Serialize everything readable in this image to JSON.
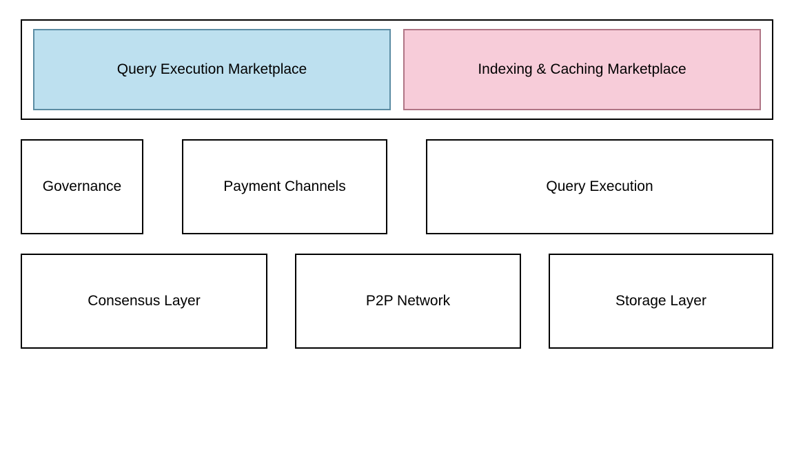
{
  "diagram": {
    "type": "architecture-block-diagram",
    "background_color": "#ffffff",
    "border_color": "#000000",
    "border_width": 2,
    "font_family": "Arial, Helvetica, sans-serif",
    "font_size_pt": 16,
    "text_color": "#000000",
    "top_container": {
      "has_outer_border": true,
      "boxes": [
        {
          "id": "query-marketplace",
          "label": "Query Execution Marketplace",
          "fill_color": "#bde0ef",
          "border_color": "#5b8ca3"
        },
        {
          "id": "indexing-marketplace",
          "label": "Indexing & Caching Marketplace",
          "fill_color": "#f7ccd9",
          "border_color": "#b07585"
        }
      ]
    },
    "middle_row": {
      "boxes": [
        {
          "id": "governance",
          "label": "Governance",
          "fill_color": "#ffffff",
          "width_ratio": 0.17
        },
        {
          "id": "payment-channels",
          "label": "Payment Channels",
          "fill_color": "#ffffff",
          "width_ratio": 0.28
        },
        {
          "id": "query-execution",
          "label": "Query Execution",
          "fill_color": "#ffffff",
          "width_ratio": 0.48
        }
      ]
    },
    "bottom_row": {
      "boxes": [
        {
          "id": "consensus",
          "label": "Consensus Layer",
          "fill_color": "#ffffff",
          "width_ratio": 0.33
        },
        {
          "id": "p2p",
          "label": "P2P Network",
          "fill_color": "#ffffff",
          "width_ratio": 0.3
        },
        {
          "id": "storage",
          "label": "Storage Layer",
          "fill_color": "#ffffff",
          "width_ratio": 0.3
        }
      ]
    }
  }
}
